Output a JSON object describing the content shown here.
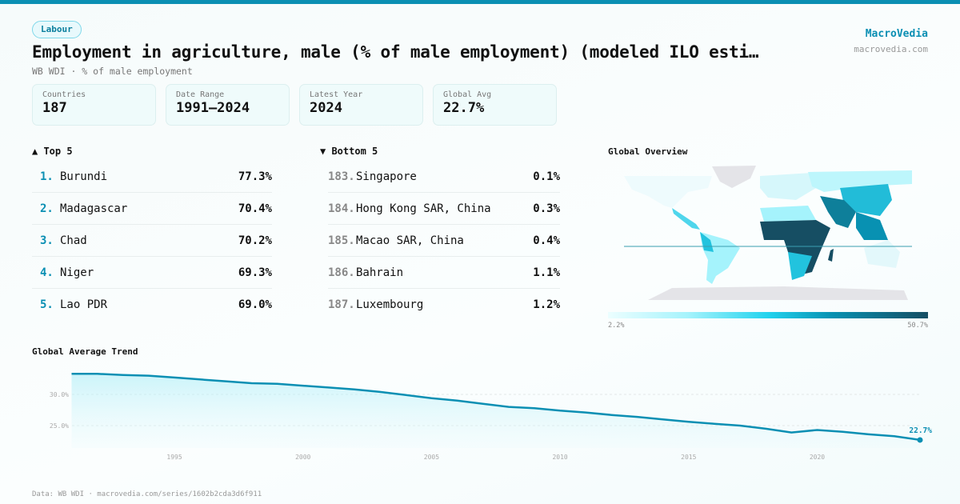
{
  "header": {
    "tag": "Labour",
    "title": "Employment in agriculture, male (% of male employment) (modeled ILO esti…",
    "subtitle": "WB WDI · % of male employment",
    "brand": "MacroVedia",
    "brand_url": "macrovedia.com"
  },
  "stats": [
    {
      "label": "Countries",
      "value": "187"
    },
    {
      "label": "Date Range",
      "value": "1991–2024"
    },
    {
      "label": "Latest Year",
      "value": "2024"
    },
    {
      "label": "Global Avg",
      "value": "22.7%"
    }
  ],
  "top5": {
    "title": "▲ Top 5",
    "items": [
      {
        "rank": "1.",
        "name": "Burundi",
        "value": "77.3%"
      },
      {
        "rank": "2.",
        "name": "Madagascar",
        "value": "70.4%"
      },
      {
        "rank": "3.",
        "name": "Chad",
        "value": "70.2%"
      },
      {
        "rank": "4.",
        "name": "Niger",
        "value": "69.3%"
      },
      {
        "rank": "5.",
        "name": "Lao PDR",
        "value": "69.0%"
      }
    ]
  },
  "bottom5": {
    "title": "▼ Bottom 5",
    "items": [
      {
        "rank": "183.",
        "name": "Singapore",
        "value": "0.1%"
      },
      {
        "rank": "184.",
        "name": "Hong Kong SAR, China",
        "value": "0.3%"
      },
      {
        "rank": "185.",
        "name": "Macao SAR, China",
        "value": "0.4%"
      },
      {
        "rank": "186.",
        "name": "Bahrain",
        "value": "1.1%"
      },
      {
        "rank": "187.",
        "name": "Luxembourg",
        "value": "1.2%"
      }
    ]
  },
  "map": {
    "title": "Global Overview",
    "legend_min": "2.2%",
    "legend_max": "50.7%",
    "colors": [
      "#ecfeff",
      "#a5f3fc",
      "#22d3ee",
      "#0891b2",
      "#164e63"
    ]
  },
  "chart_data": {
    "type": "area",
    "title": "Global Average Trend",
    "x": [
      1991,
      1992,
      1993,
      1994,
      1995,
      1996,
      1997,
      1998,
      1999,
      2000,
      2001,
      2002,
      2003,
      2004,
      2005,
      2006,
      2007,
      2008,
      2009,
      2010,
      2011,
      2012,
      2013,
      2014,
      2015,
      2016,
      2017,
      2018,
      2019,
      2020,
      2021,
      2022,
      2023,
      2024
    ],
    "values": [
      33.3,
      33.3,
      33.1,
      33.0,
      32.7,
      32.4,
      32.1,
      31.8,
      31.7,
      31.4,
      31.1,
      30.8,
      30.4,
      29.9,
      29.4,
      29.0,
      28.5,
      28.0,
      27.8,
      27.4,
      27.1,
      26.7,
      26.4,
      26.0,
      25.6,
      25.3,
      25.0,
      24.5,
      23.9,
      24.3,
      24.0,
      23.6,
      23.3,
      22.7
    ],
    "yticks": [
      "25.0%",
      "30.0%"
    ],
    "ytick_values": [
      25,
      30
    ],
    "xticks": [
      "1995",
      "2000",
      "2005",
      "2010",
      "2015",
      "2020"
    ],
    "xtick_values": [
      1995,
      2000,
      2005,
      2010,
      2015,
      2020
    ],
    "last_label": "22.7%",
    "color": "#0b8fb3"
  },
  "footer": "Data: WB WDI · macrovedia.com/series/1602b2cda3d6f911"
}
